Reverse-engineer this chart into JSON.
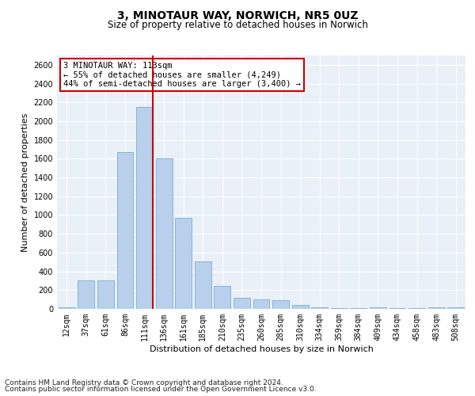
{
  "title": "3, MINOTAUR WAY, NORWICH, NR5 0UZ",
  "subtitle": "Size of property relative to detached houses in Norwich",
  "xlabel": "Distribution of detached houses by size in Norwich",
  "ylabel": "Number of detached properties",
  "categories": [
    "12sqm",
    "37sqm",
    "61sqm",
    "86sqm",
    "111sqm",
    "136sqm",
    "161sqm",
    "185sqm",
    "210sqm",
    "235sqm",
    "260sqm",
    "285sqm",
    "310sqm",
    "334sqm",
    "359sqm",
    "384sqm",
    "409sqm",
    "434sqm",
    "458sqm",
    "483sqm",
    "508sqm"
  ],
  "values": [
    20,
    300,
    300,
    1670,
    2150,
    1600,
    970,
    510,
    245,
    120,
    100,
    95,
    45,
    15,
    10,
    5,
    20,
    5,
    5,
    15,
    20
  ],
  "bar_color": "#b8d0eb",
  "bar_edge_color": "#7aadd4",
  "highlight_index": 4,
  "highlight_line_color": "#cc0000",
  "annotation_text": "3 MINOTAUR WAY: 113sqm\n← 55% of detached houses are smaller (4,249)\n44% of semi-detached houses are larger (3,400) →",
  "annotation_box_color": "#ffffff",
  "annotation_box_edge_color": "#cc0000",
  "ylim": [
    0,
    2700
  ],
  "yticks": [
    0,
    200,
    400,
    600,
    800,
    1000,
    1200,
    1400,
    1600,
    1800,
    2000,
    2200,
    2400,
    2600
  ],
  "background_color": "#eaf0f8",
  "footer_line1": "Contains HM Land Registry data © Crown copyright and database right 2024.",
  "footer_line2": "Contains public sector information licensed under the Open Government Licence v3.0.",
  "title_fontsize": 10,
  "subtitle_fontsize": 8.5,
  "xlabel_fontsize": 8,
  "ylabel_fontsize": 8,
  "tick_fontsize": 7,
  "annotation_fontsize": 7.5,
  "footer_fontsize": 6.5
}
